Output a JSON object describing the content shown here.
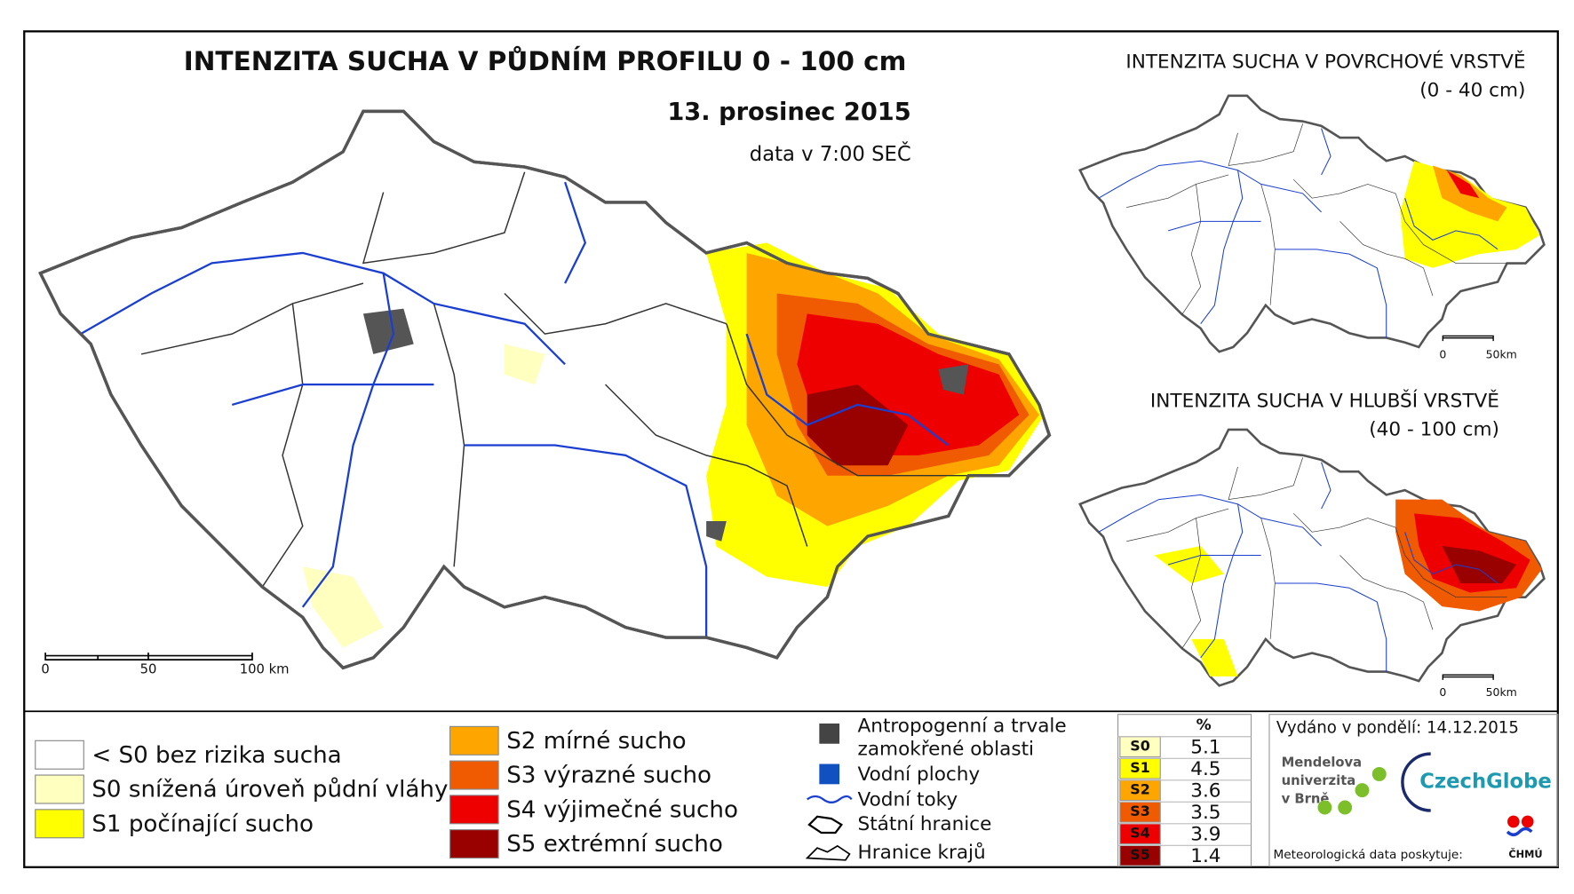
{
  "main_map": {
    "title": "INTENZITA SUCHA V PŮDNÍM PROFILU 0 - 100 cm",
    "date": "13. prosinec 2015",
    "time_note": "data v 7:00 SEČ",
    "scale_labels": [
      "0",
      "50",
      "100 km"
    ]
  },
  "inset_surface": {
    "title": "INTENZITA SUCHA V POVRCHOVÉ VRSTVĚ",
    "subtitle": "(0 - 40 cm)",
    "scale_labels": [
      "0",
      "50km"
    ]
  },
  "inset_deep": {
    "title": "INTENZITA SUCHA V HLUBŠÍ VRSTVĚ",
    "subtitle": "(40 - 100 cm)",
    "scale_labels": [
      "0",
      "50km"
    ]
  },
  "legend": {
    "classes": [
      {
        "label": "< S0 bez rizika sucha",
        "color": "#ffffff"
      },
      {
        "label": "S0 snížená úroveň půdní vláhy",
        "color": "#ffffc0"
      },
      {
        "label": "S1 počínající sucho",
        "color": "#ffff00"
      },
      {
        "label": "S2 mírné sucho",
        "color": "#ffa500"
      },
      {
        "label": "S3 výrazné sucho",
        "color": "#f05a00"
      },
      {
        "label": "S4 výjimečné sucho",
        "color": "#ee0000"
      },
      {
        "label": "S5 extrémní sucho",
        "color": "#990000"
      }
    ],
    "features": [
      "Antropogenní a trvale",
      "zamokřené oblasti",
      "Vodní plochy",
      "Vodní toky",
      "Státní hranice",
      "Hranice krajů"
    ]
  },
  "stats": {
    "header": "%",
    "rows": [
      {
        "class": "S0",
        "value": 5.1,
        "color": "#ffffc0"
      },
      {
        "class": "S1",
        "value": 4.5,
        "color": "#ffff00"
      },
      {
        "class": "S2",
        "value": 3.6,
        "color": "#ffa500"
      },
      {
        "class": "S3",
        "value": 3.5,
        "color": "#f05a00"
      },
      {
        "class": "S4",
        "value": 3.9,
        "color": "#ee0000"
      },
      {
        "class": "S5",
        "value": 1.4,
        "color": "#990000"
      }
    ]
  },
  "footer": {
    "issued": "Vydáno v pondělí: 14.12.2015",
    "mendel": [
      "Mendelova",
      "univerzita",
      "v Brně"
    ],
    "czechglobe": "CzechGlobe",
    "data_provider": "Meteorologická data poskytuje:",
    "chmu": "ČHMÚ"
  }
}
